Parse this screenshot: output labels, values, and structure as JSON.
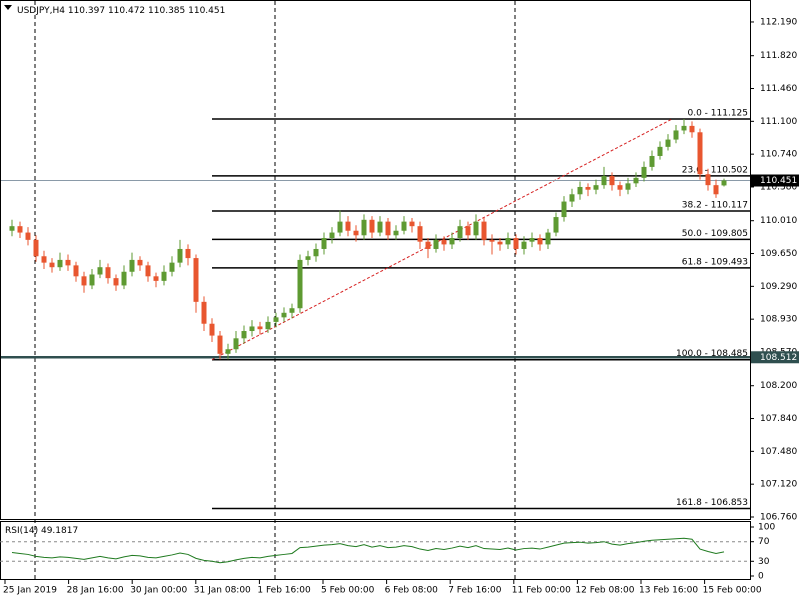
{
  "chart_data": {
    "type": "candlestick",
    "symbol": "USDJPY,H4",
    "ylim": [
      106.727,
      112.431
    ],
    "yticks": [
      {
        "value": 112.19,
        "label": "112.190"
      },
      {
        "value": 111.82,
        "label": "111.820"
      },
      {
        "value": 111.46,
        "label": "111.460"
      },
      {
        "value": 111.1,
        "label": "111.100"
      },
      {
        "value": 110.74,
        "label": "110.740"
      },
      {
        "value": 110.38,
        "label": "110.380"
      },
      {
        "value": 110.01,
        "label": "110.010"
      },
      {
        "value": 109.65,
        "label": "109.650"
      },
      {
        "value": 109.29,
        "label": "109.290"
      },
      {
        "value": 108.93,
        "label": "108.930"
      },
      {
        "value": 108.57,
        "label": "108.570"
      },
      {
        "value": 108.2,
        "label": "108.200"
      },
      {
        "value": 107.84,
        "label": "107.840"
      },
      {
        "value": 107.48,
        "label": "107.480"
      },
      {
        "value": 107.12,
        "label": "107.120"
      },
      {
        "value": 106.76,
        "label": "106.760"
      }
    ],
    "time_labels": [
      "25 Jan 2019",
      "28 Jan 16:00",
      "30 Jan 00:00",
      "31 Jan 08:00",
      "1 Feb 16:00",
      "5 Feb 00:00",
      "6 Feb 08:00",
      "7 Feb 16:00",
      "11 Feb 00:00",
      "12 Feb 08:00",
      "13 Feb 16:00",
      "15 Feb 00:00"
    ],
    "colors": {
      "up": "#5e9a32",
      "down": "#e8562f",
      "rsi": "#1f7a1f",
      "fib": "#000000",
      "trend": "#d62020"
    },
    "hline": 108.512,
    "fib_levels": [
      {
        "label": "0.0 - 111.125",
        "value": 111.125
      },
      {
        "label": "23.6 - 110.502",
        "value": 110.502
      },
      {
        "label": "38.2 - 110.117",
        "value": 110.117
      },
      {
        "label": "50.0 - 109.805",
        "value": 109.805
      },
      {
        "label": "61.8 - 109.493",
        "value": 109.493
      },
      {
        "label": "100.0 - 108.485",
        "value": 108.485
      },
      {
        "label": "161.8 - 106.853",
        "value": 106.853
      }
    ],
    "candles": [
      [
        109.9,
        110.02,
        109.84,
        109.95
      ],
      [
        109.95,
        110.0,
        109.82,
        109.88
      ],
      [
        109.88,
        109.94,
        109.74,
        109.8
      ],
      [
        109.8,
        109.85,
        109.56,
        109.62
      ],
      [
        109.62,
        109.68,
        109.48,
        109.55
      ],
      [
        109.55,
        109.6,
        109.44,
        109.5
      ],
      [
        109.5,
        109.66,
        109.46,
        109.58
      ],
      [
        109.58,
        109.64,
        109.46,
        109.52
      ],
      [
        109.52,
        109.56,
        109.34,
        109.4
      ],
      [
        109.4,
        109.45,
        109.22,
        109.3
      ],
      [
        109.3,
        109.48,
        109.26,
        109.42
      ],
      [
        109.42,
        109.58,
        109.38,
        109.5
      ],
      [
        109.5,
        109.54,
        109.32,
        109.38
      ],
      [
        109.38,
        109.42,
        109.24,
        109.3
      ],
      [
        109.3,
        109.52,
        109.26,
        109.45
      ],
      [
        109.45,
        109.66,
        109.4,
        109.58
      ],
      [
        109.58,
        109.62,
        109.46,
        109.52
      ],
      [
        109.52,
        109.56,
        109.34,
        109.4
      ],
      [
        109.4,
        109.44,
        109.28,
        109.35
      ],
      [
        109.35,
        109.52,
        109.3,
        109.45
      ],
      [
        109.45,
        109.62,
        109.4,
        109.55
      ],
      [
        109.55,
        109.8,
        109.5,
        109.7
      ],
      [
        109.7,
        109.75,
        109.52,
        109.6
      ],
      [
        109.6,
        109.64,
        109.0,
        109.12
      ],
      [
        109.12,
        109.18,
        108.8,
        108.88
      ],
      [
        108.88,
        108.94,
        108.68,
        108.75
      ],
      [
        108.75,
        108.8,
        108.49,
        108.55
      ],
      [
        108.55,
        108.66,
        108.49,
        108.6
      ],
      [
        108.6,
        108.8,
        108.56,
        108.72
      ],
      [
        108.72,
        108.86,
        108.66,
        108.8
      ],
      [
        108.8,
        108.92,
        108.74,
        108.85
      ],
      [
        108.85,
        108.9,
        108.76,
        108.82
      ],
      [
        108.82,
        108.96,
        108.78,
        108.9
      ],
      [
        108.9,
        109.0,
        108.84,
        108.95
      ],
      [
        108.95,
        109.06,
        108.9,
        109.0
      ],
      [
        109.0,
        109.1,
        108.94,
        109.05
      ],
      [
        109.05,
        109.64,
        109.0,
        109.58
      ],
      [
        109.58,
        109.68,
        109.52,
        109.62
      ],
      [
        109.62,
        109.76,
        109.56,
        109.7
      ],
      [
        109.7,
        109.88,
        109.64,
        109.82
      ],
      [
        109.82,
        109.94,
        109.76,
        109.88
      ],
      [
        109.88,
        110.12,
        109.84,
        110.0
      ],
      [
        110.0,
        110.06,
        109.84,
        109.9
      ],
      [
        109.9,
        109.96,
        109.78,
        109.85
      ],
      [
        109.85,
        110.08,
        109.8,
        110.02
      ],
      [
        110.02,
        110.06,
        109.82,
        109.88
      ],
      [
        109.88,
        110.06,
        109.84,
        110.0
      ],
      [
        110.0,
        110.04,
        109.8,
        109.85
      ],
      [
        109.85,
        109.96,
        109.8,
        109.9
      ],
      [
        109.9,
        110.06,
        109.86,
        110.0
      ],
      [
        110.0,
        110.04,
        109.88,
        109.95
      ],
      [
        109.95,
        110.0,
        109.7,
        109.78
      ],
      [
        109.78,
        109.82,
        109.6,
        109.7
      ],
      [
        109.7,
        109.86,
        109.66,
        109.8
      ],
      [
        109.8,
        109.84,
        109.68,
        109.75
      ],
      [
        109.75,
        109.88,
        109.7,
        109.82
      ],
      [
        109.82,
        110.02,
        109.78,
        109.95
      ],
      [
        109.95,
        110.0,
        109.8,
        109.85
      ],
      [
        109.85,
        110.08,
        109.8,
        110.0
      ],
      [
        110.0,
        110.04,
        109.74,
        109.8
      ],
      [
        109.8,
        109.86,
        109.64,
        109.78
      ],
      [
        109.78,
        109.82,
        109.68,
        109.75
      ],
      [
        109.75,
        109.88,
        109.7,
        109.82
      ],
      [
        109.82,
        109.86,
        109.64,
        109.7
      ],
      [
        109.7,
        109.84,
        109.64,
        109.78
      ],
      [
        109.78,
        109.88,
        109.72,
        109.82
      ],
      [
        109.82,
        109.86,
        109.68,
        109.75
      ],
      [
        109.75,
        109.92,
        109.7,
        109.88
      ],
      [
        109.88,
        110.1,
        109.84,
        110.05
      ],
      [
        110.05,
        110.28,
        110.0,
        110.22
      ],
      [
        110.22,
        110.36,
        110.16,
        110.3
      ],
      [
        110.3,
        110.44,
        110.24,
        110.38
      ],
      [
        110.38,
        110.42,
        110.28,
        110.35
      ],
      [
        110.35,
        110.46,
        110.3,
        110.4
      ],
      [
        110.4,
        110.6,
        110.36,
        110.5
      ],
      [
        110.5,
        110.54,
        110.34,
        110.4
      ],
      [
        110.4,
        110.44,
        110.28,
        110.35
      ],
      [
        110.35,
        110.48,
        110.3,
        110.42
      ],
      [
        110.42,
        110.54,
        110.38,
        110.48
      ],
      [
        110.48,
        110.66,
        110.44,
        110.6
      ],
      [
        110.6,
        110.78,
        110.56,
        110.72
      ],
      [
        110.72,
        110.88,
        110.68,
        110.82
      ],
      [
        110.82,
        110.96,
        110.78,
        110.9
      ],
      [
        110.9,
        111.06,
        110.86,
        111.0
      ],
      [
        111.0,
        111.125,
        110.96,
        111.05
      ],
      [
        111.05,
        111.1,
        110.92,
        110.98
      ],
      [
        110.98,
        111.02,
        110.46,
        110.52
      ],
      [
        110.52,
        110.58,
        110.34,
        110.4
      ],
      [
        110.4,
        110.46,
        110.26,
        110.3
      ],
      [
        110.397,
        110.472,
        110.385,
        110.451
      ]
    ],
    "rsi": {
      "name": "RSI(14)",
      "ylim": [
        0,
        100
      ],
      "yticks": [
        100,
        70,
        30,
        0
      ],
      "values": [
        48,
        46,
        44,
        40,
        38,
        37,
        39,
        38,
        36,
        34,
        37,
        40,
        37,
        35,
        39,
        42,
        41,
        38,
        37,
        40,
        43,
        47,
        44,
        36,
        32,
        30,
        27,
        29,
        33,
        36,
        38,
        37,
        40,
        42,
        44,
        46,
        58,
        59,
        61,
        63,
        64,
        66,
        62,
        60,
        64,
        59,
        62,
        58,
        59,
        62,
        60,
        55,
        52,
        56,
        54,
        57,
        61,
        58,
        62,
        56,
        55,
        54,
        57,
        53,
        56,
        57,
        55,
        59,
        63,
        67,
        68,
        69,
        67,
        68,
        70,
        65,
        63,
        66,
        68,
        71,
        73,
        74,
        75,
        76,
        77,
        75,
        55,
        50,
        46,
        49.1817
      ]
    }
  }
}
